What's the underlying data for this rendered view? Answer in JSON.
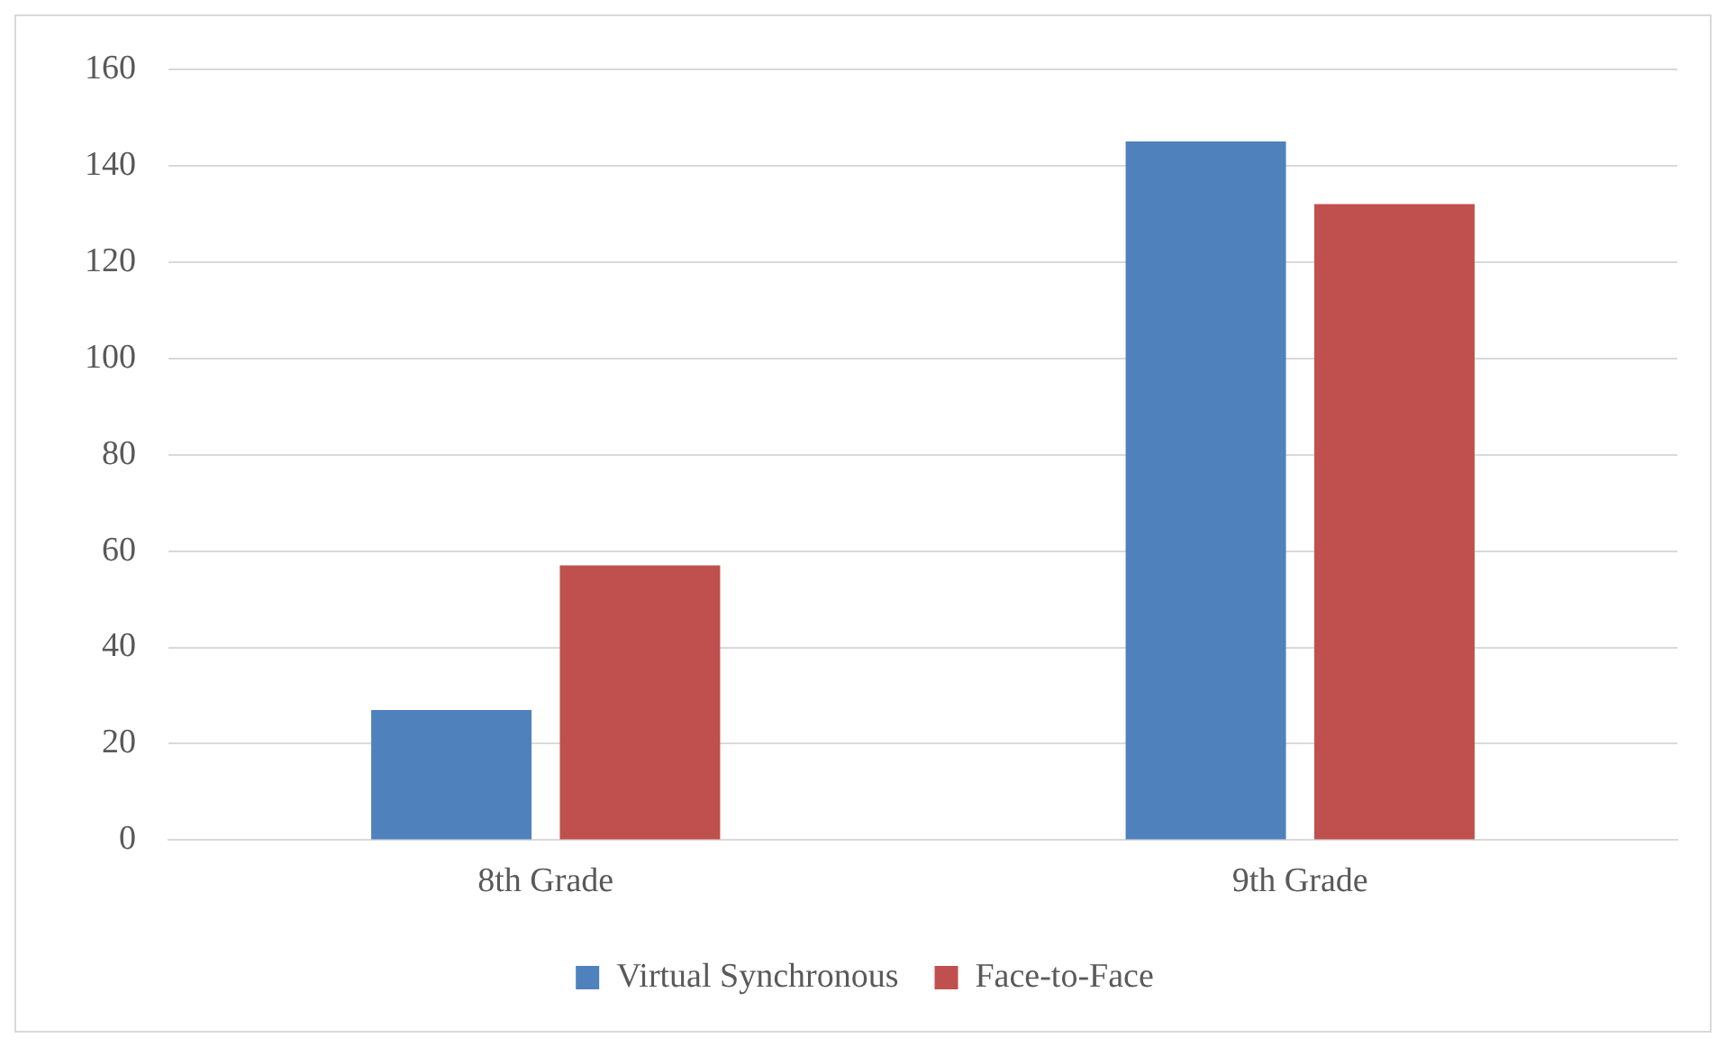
{
  "chart_data": {
    "type": "bar",
    "categories": [
      "8th Grade",
      "9th Grade"
    ],
    "series": [
      {
        "name": "Virtual Synchronous",
        "color": "#4f81bd",
        "values": [
          27,
          145
        ]
      },
      {
        "name": "Face-to-Face",
        "color": "#c0504d",
        "values": [
          57,
          132
        ]
      }
    ],
    "ylim": [
      0,
      160
    ],
    "yticks": [
      0,
      20,
      40,
      60,
      80,
      100,
      120,
      140,
      160
    ],
    "grid": "y",
    "legend": "bottom"
  }
}
